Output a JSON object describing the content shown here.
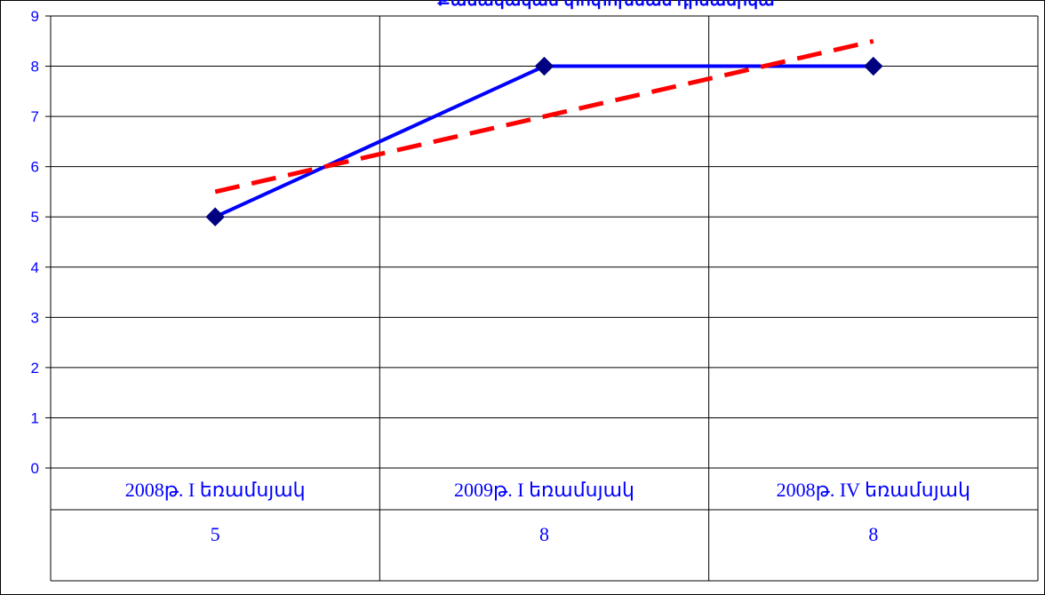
{
  "chart_data": {
    "type": "line",
    "title": "Քանակական փոփոխման դինամիկա",
    "categories": [
      "2008թ. I եռամսյակ",
      "2009թ. I եռամսյակ",
      "2008թ. IV եռամսյակ"
    ],
    "series": [
      {
        "values": [
          5,
          8,
          8
        ],
        "color": "#0000ff",
        "marker": "diamond",
        "marker_color": "#000080"
      }
    ],
    "trendline": {
      "type": "linear",
      "values": [
        5.5,
        7.0,
        8.5
      ],
      "color": "#ff0000",
      "style": "dashed"
    },
    "data_table": [
      "5",
      "8",
      "8"
    ],
    "y_ticks": [
      "0",
      "1",
      "2",
      "3",
      "4",
      "5",
      "6",
      "7",
      "8",
      "9"
    ],
    "ylim": [
      0,
      9
    ],
    "grid": true,
    "xlabel": "",
    "ylabel": ""
  }
}
